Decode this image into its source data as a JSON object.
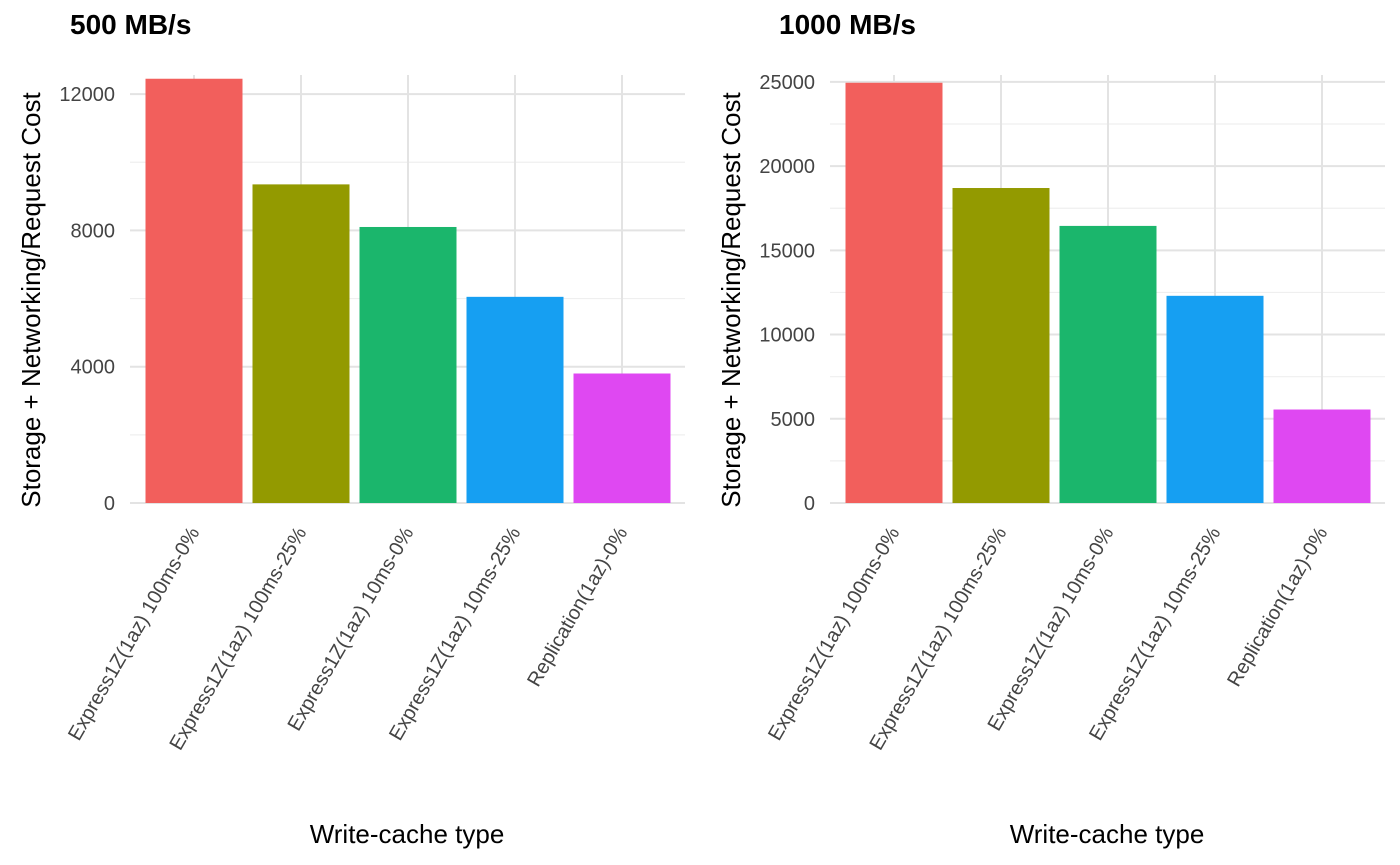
{
  "chart_data": [
    {
      "type": "bar",
      "title": "500 MB/s",
      "xlabel": "Write-cache type",
      "ylabel": "Storage + Networking/Request Cost",
      "categories": [
        "Express1Z(1az) 100ms-0%",
        "Express1Z(1az) 100ms-25%",
        "Express1Z(1az) 10ms-0%",
        "Express1Z(1az) 10ms-25%",
        "Replication(1az)-0%"
      ],
      "values": [
        12450,
        9350,
        8100,
        6050,
        3800
      ],
      "colors": [
        "#F25F5C",
        "#939A00",
        "#1BB66C",
        "#169FF2",
        "#DF48F2"
      ],
      "yticks": [
        0,
        4000,
        8000,
        12000
      ],
      "ylim": [
        0,
        13000
      ],
      "grid": true,
      "legend": "none"
    },
    {
      "type": "bar",
      "title": "1000 MB/s",
      "xlabel": "Write-cache type",
      "ylabel": "Storage + Networking/Request Cost",
      "categories": [
        "Express1Z(1az) 100ms-0%",
        "Express1Z(1az) 100ms-25%",
        "Express1Z(1az) 10ms-0%",
        "Express1Z(1az) 10ms-25%",
        "Replication(1az)-0%"
      ],
      "values": [
        24950,
        18700,
        16450,
        12300,
        5550
      ],
      "colors": [
        "#F25F5C",
        "#939A00",
        "#1BB66C",
        "#169FF2",
        "#DF48F2"
      ],
      "yticks": [
        0,
        5000,
        10000,
        15000,
        20000,
        25000
      ],
      "ylim": [
        0,
        26300
      ],
      "grid": true,
      "legend": "none"
    }
  ]
}
